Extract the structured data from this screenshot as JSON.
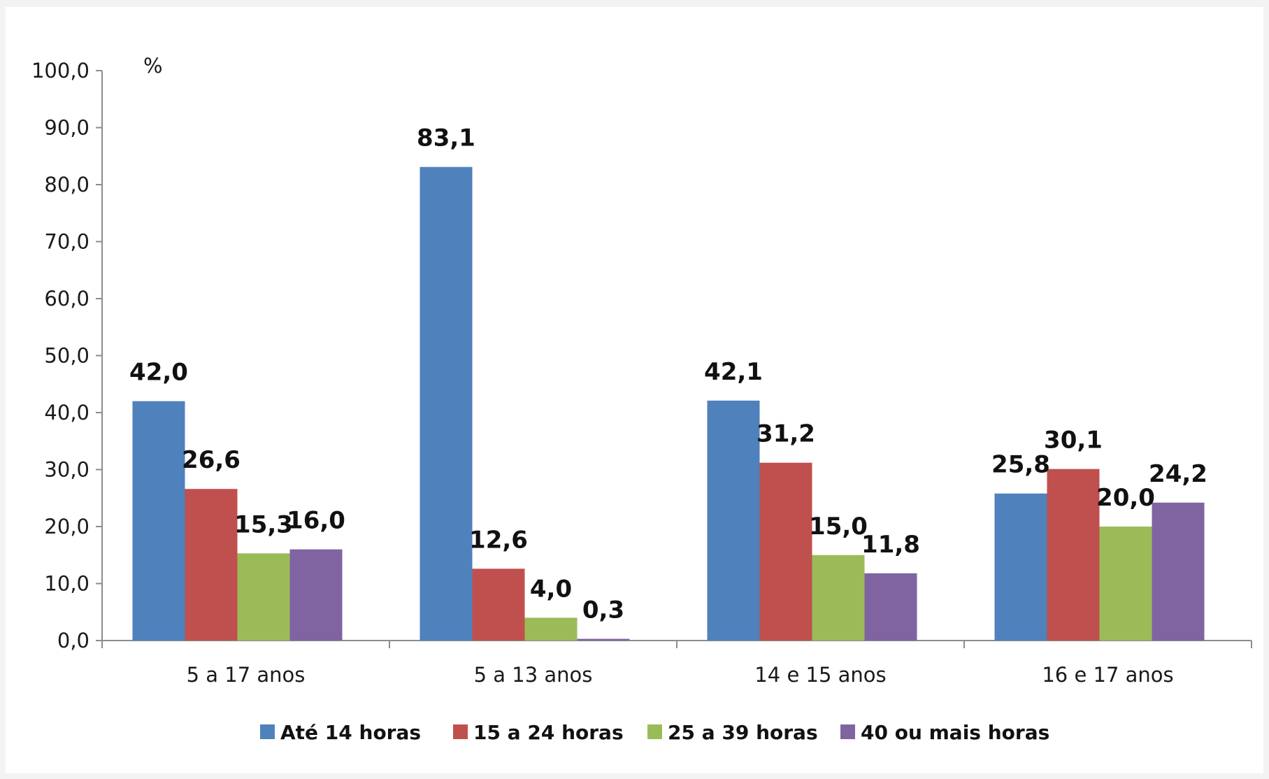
{
  "chart_data": {
    "type": "bar",
    "unit_label": "%",
    "categories": [
      "5 a 17 anos",
      "5 a 13 anos",
      "14 e 15 anos",
      "16 e 17 anos"
    ],
    "series": [
      {
        "name": "Até 14 horas",
        "color": "#4f81bd",
        "values": [
          42.0,
          83.1,
          42.1,
          25.8
        ],
        "labels": [
          "42,0",
          "83,1",
          "42,1",
          "25,8"
        ]
      },
      {
        "name": "15 a 24 horas",
        "color": "#c0504d",
        "values": [
          26.6,
          12.6,
          31.2,
          30.1
        ],
        "labels": [
          "26,6",
          "12,6",
          "31,2",
          "30,1"
        ]
      },
      {
        "name": "25 a 39 horas",
        "color": "#9bbb59",
        "values": [
          15.3,
          4.0,
          15.0,
          20.0
        ],
        "labels": [
          "15,3",
          "4,0",
          "15,0",
          "20,0"
        ]
      },
      {
        "name": "40 ou mais horas",
        "color": "#8064a2",
        "values": [
          16.0,
          0.3,
          11.8,
          24.2
        ],
        "labels": [
          "16,0",
          "0,3",
          "11,8",
          "24,2"
        ]
      }
    ],
    "ylim": [
      0,
      100
    ],
    "yticks": [
      0,
      10,
      20,
      30,
      40,
      50,
      60,
      70,
      80,
      90,
      100
    ],
    "ytick_labels": [
      "0,0",
      "10,0",
      "20,0",
      "30,0",
      "40,0",
      "50,0",
      "60,0",
      "70,0",
      "80,0",
      "90,0",
      "100,0"
    ],
    "grid": false,
    "legend_position": "bottom"
  }
}
